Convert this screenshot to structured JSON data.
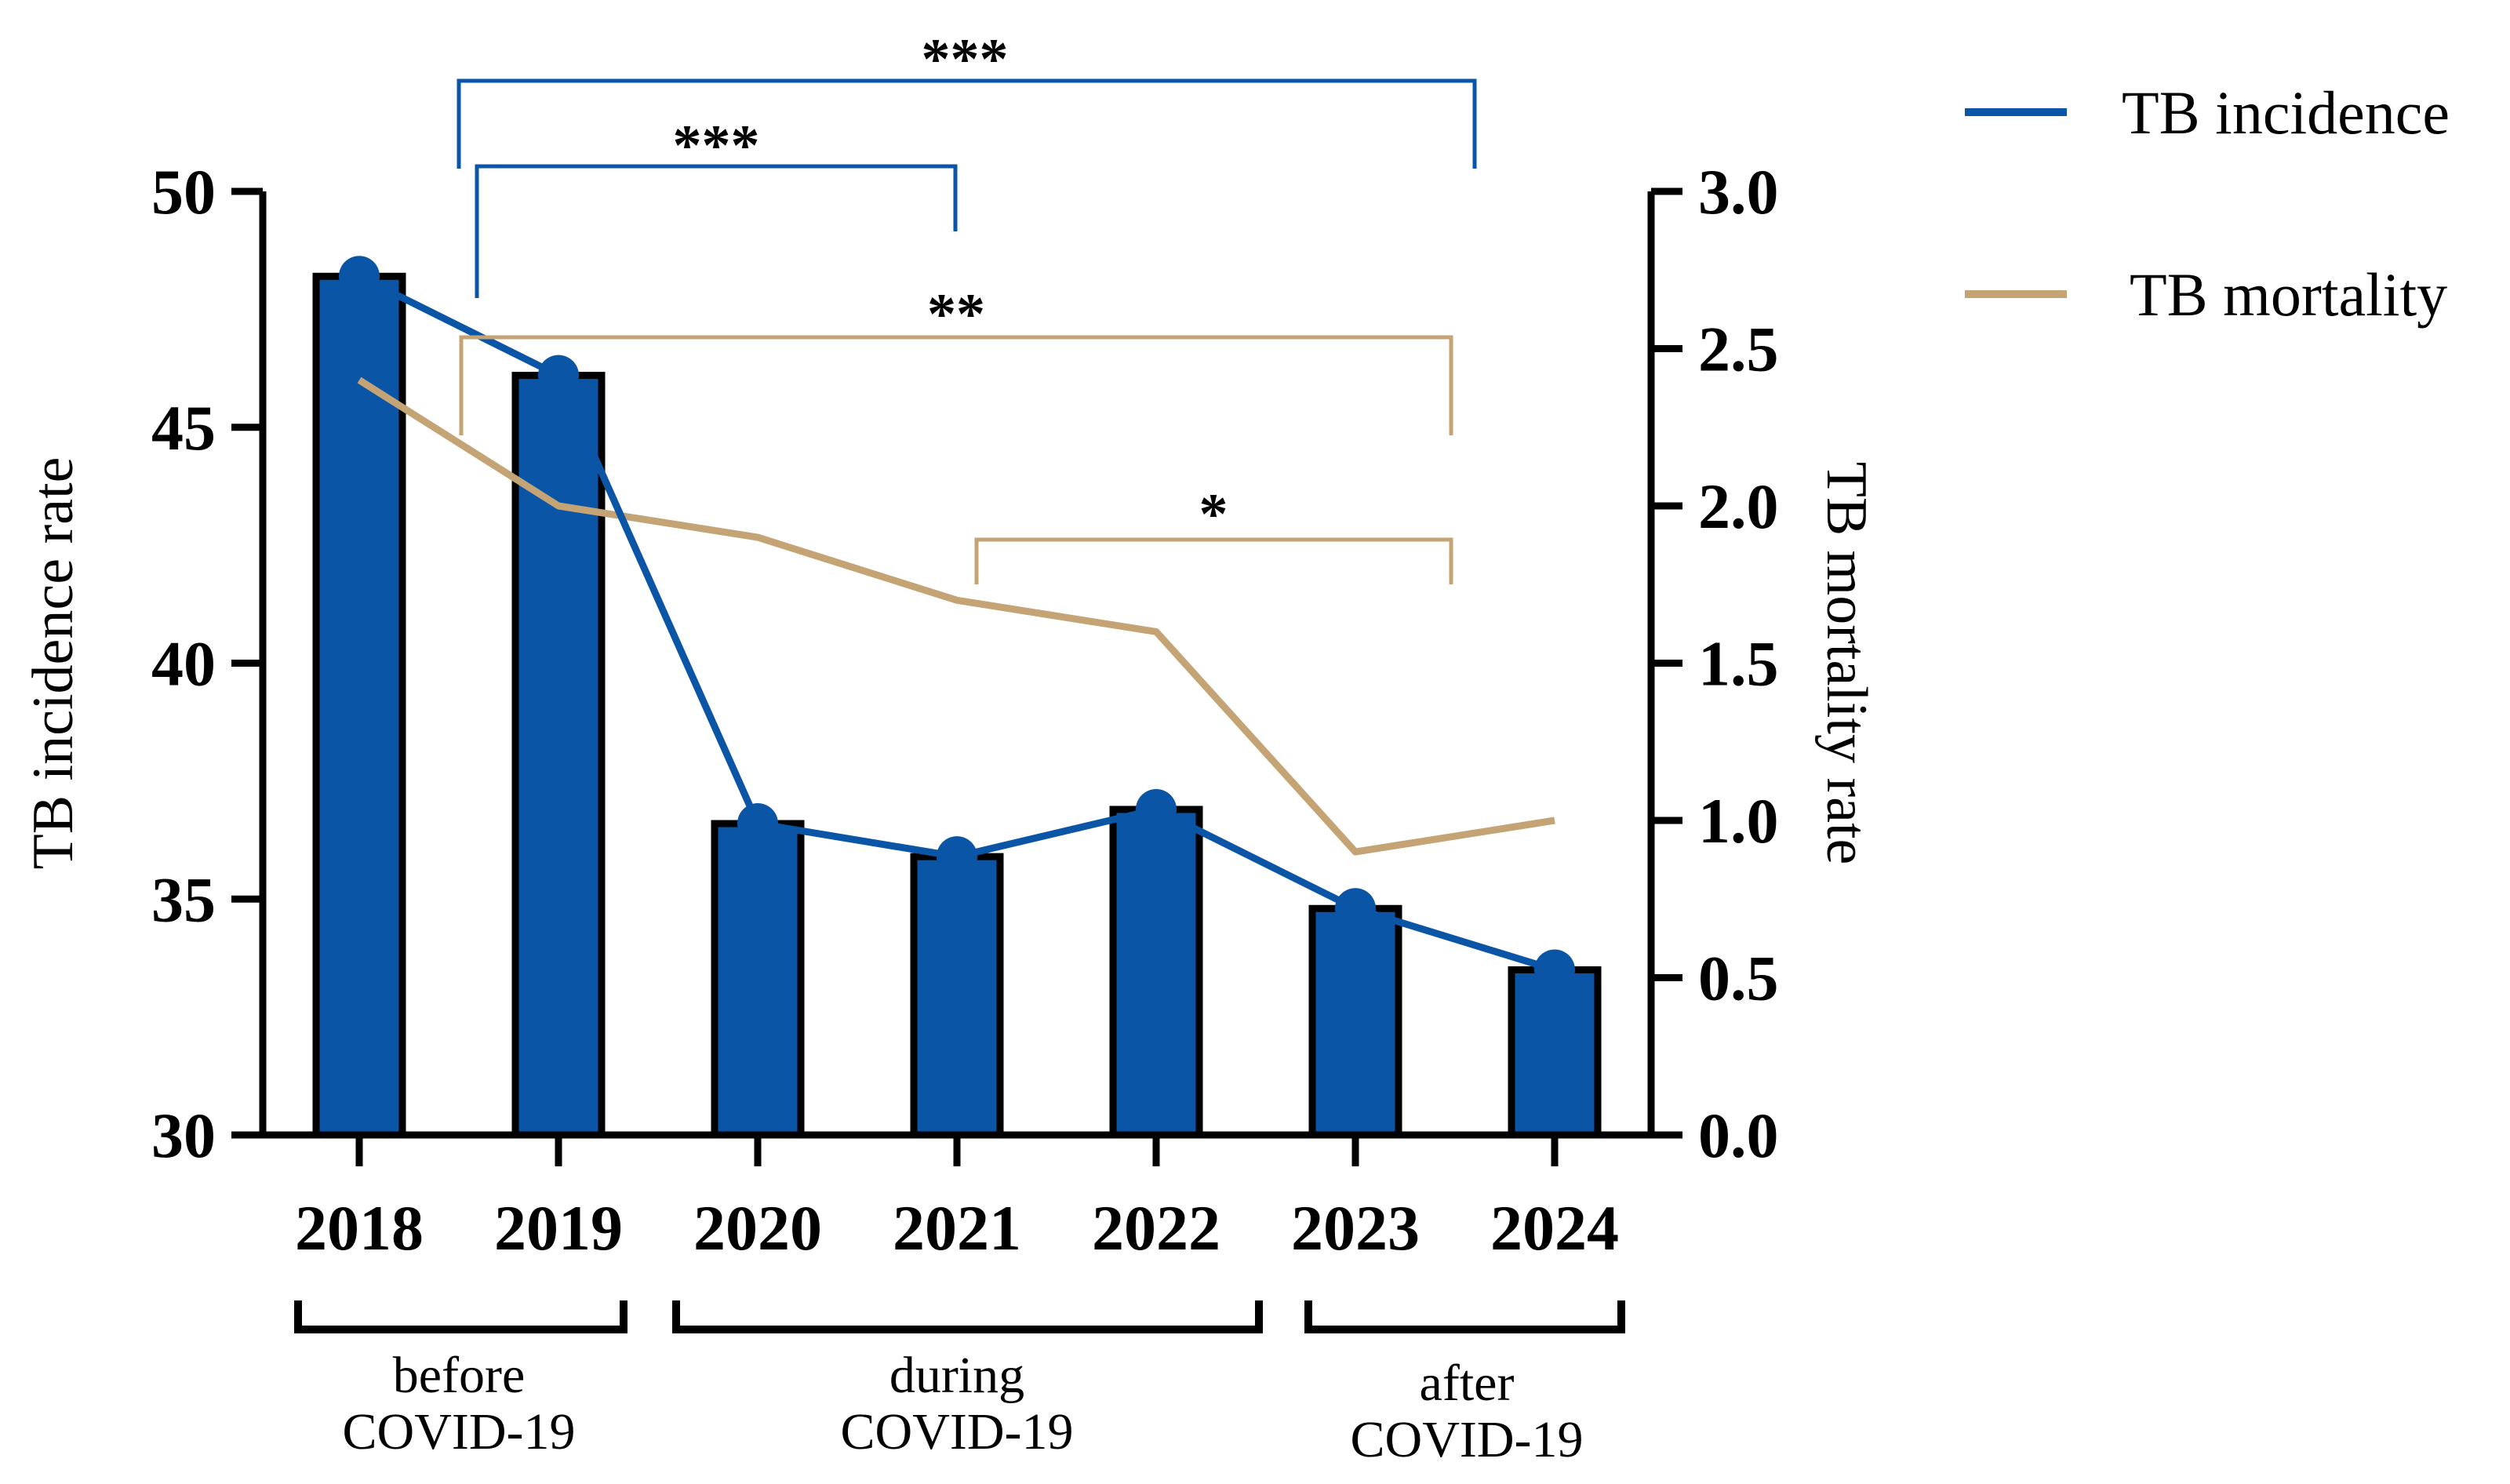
{
  "chart_data": {
    "type": "bar",
    "categories": [
      "2018",
      "2019",
      "2020",
      "2021",
      "2022",
      "2023",
      "2024"
    ],
    "series": [
      {
        "name": "TB incidence",
        "kind": "bar+line",
        "axis": "left",
        "values": [
          48.2,
          46.1,
          36.6,
          35.9,
          36.9,
          34.8,
          33.5
        ]
      },
      {
        "name": "TB mortality",
        "kind": "line",
        "axis": "right",
        "values": [
          2.4,
          2.0,
          1.9,
          1.7,
          1.6,
          0.9,
          1.0
        ]
      }
    ],
    "ylabel": "TB incidence rate",
    "y2label": "TB mortality rate",
    "ylim": [
      30,
      50
    ],
    "y2lim": [
      0.0,
      3.0
    ],
    "yticks": [
      "30",
      "35",
      "40",
      "45",
      "50"
    ],
    "y2ticks": [
      "0.0",
      "0.5",
      "1.0",
      "1.5",
      "2.0",
      "2.5",
      "3.0"
    ],
    "grid": false,
    "legend": {
      "placement": "top-right",
      "entries": [
        {
          "label": "TB incidence",
          "color": "#0a55a6"
        },
        {
          "label": "TB mortality",
          "color": "#c4a474"
        }
      ]
    },
    "periods": [
      {
        "lines": [
          "before",
          "COVID-19"
        ],
        "from": "2018",
        "to": "2019"
      },
      {
        "lines": [
          "during",
          "COVID-19"
        ],
        "from": "2020",
        "to": "2022"
      },
      {
        "lines": [
          "after",
          "COVID-19"
        ],
        "from": "2023",
        "to": "2024"
      }
    ],
    "significance": [
      {
        "label": "***",
        "from": "2018-2019",
        "to": "2023-2024",
        "series": "TB incidence"
      },
      {
        "label": "***",
        "from": "2018-2019",
        "to": "2020-2022",
        "series": "TB incidence"
      },
      {
        "label": "**",
        "from": "2018-2019",
        "to": "2023-2024",
        "series": "TB mortality"
      },
      {
        "label": "*",
        "from": "2020-2022",
        "to": "2023-2024",
        "series": "TB mortality"
      }
    ]
  },
  "colors": {
    "bar_fill": "#0a55a6",
    "incidence_line": "#0a55a6",
    "mortality_line": "#c4a474",
    "axis": "#000000"
  }
}
